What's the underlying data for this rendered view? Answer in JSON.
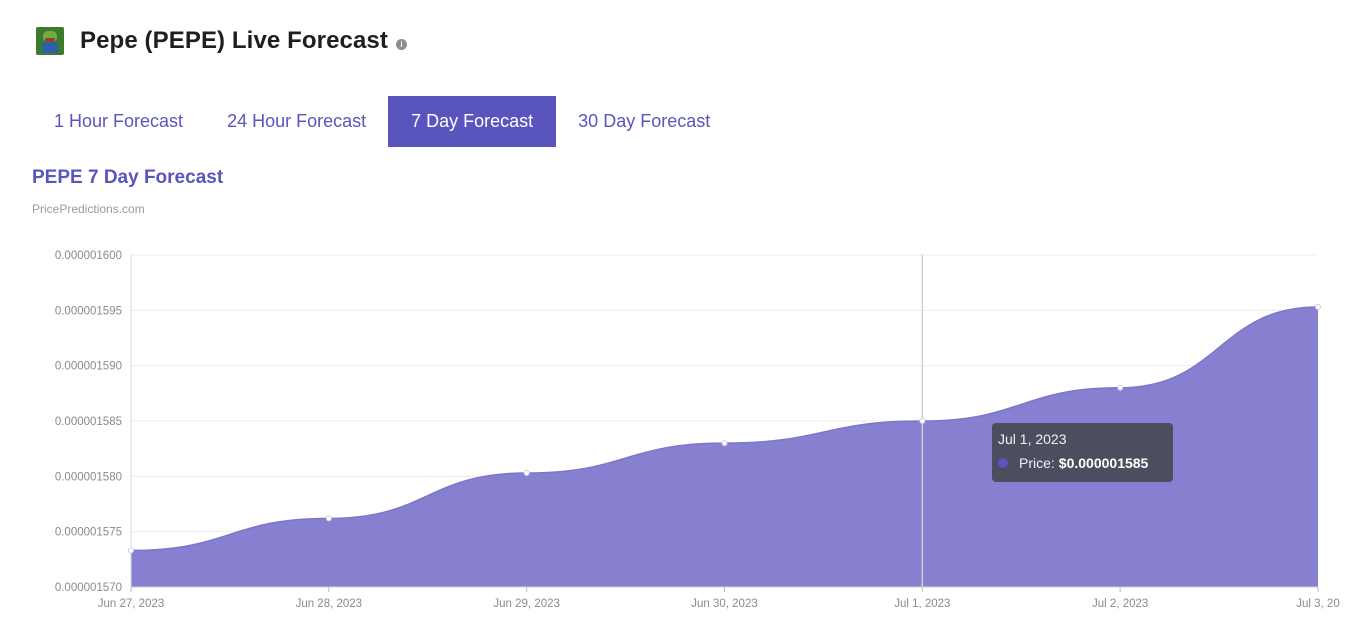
{
  "header": {
    "title": "Pepe (PEPE) Live Forecast",
    "logo_icon": "pepe-logo-icon",
    "info_icon": "info-icon"
  },
  "tabs": [
    {
      "label": "1 Hour Forecast",
      "active": false
    },
    {
      "label": "24 Hour Forecast",
      "active": false
    },
    {
      "label": "7 Day Forecast",
      "active": true
    },
    {
      "label": "30 Day Forecast",
      "active": false
    }
  ],
  "colors": {
    "accent": "#5a55bd",
    "area_fill": "#8780d1",
    "tooltip_bg": "#464650"
  },
  "chart_data": {
    "type": "area",
    "title": "PEPE 7 Day Forecast",
    "subtitle": "PricePredictions.com",
    "xlabel": "",
    "ylabel": "",
    "grid": true,
    "categories": [
      "Jun 27, 2023",
      "Jun 28, 2023",
      "Jun 29, 2023",
      "Jun 30, 2023",
      "Jul 1, 2023",
      "Jul 2, 2023",
      "Jul 3, 20"
    ],
    "series": [
      {
        "values": [
          1.5733e-06,
          1.5762e-06,
          1.5803e-06,
          1.583e-06,
          1.585e-06,
          1.588e-06,
          1.5953e-06
        ]
      }
    ],
    "ylim": [
      1.57e-06,
      1.6e-06
    ],
    "yticks": [
      "0.000001570",
      "0.000001575",
      "0.000001580",
      "0.000001585",
      "0.000001590",
      "0.000001595",
      "0.000001600"
    ],
    "tooltip": {
      "date": "Jul 1, 2023",
      "label": "Price:",
      "value": "$0.000001585"
    }
  }
}
